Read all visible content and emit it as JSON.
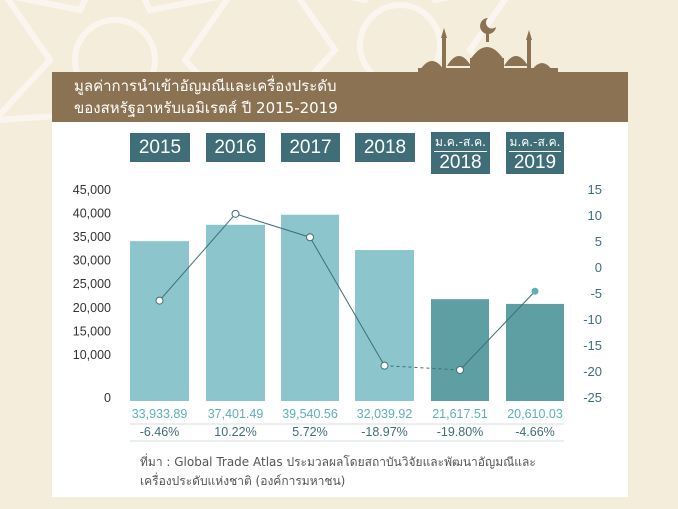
{
  "colors": {
    "background": "#f4eddc",
    "banner": "#8b7252",
    "year_box": "#3f6e78",
    "bar_light": "#8cc6cc",
    "bar_dark": "#5d9fa3",
    "line": "#3f6e78",
    "value_text": "#5db0b7",
    "axis_text": "#333333",
    "right_axis_text": "#3f6e78"
  },
  "banner": {
    "title_line1": "มูลค่าการนำเข้าอัญมณีและเครื่องประดับ",
    "title_line2": "ของสหรัฐอาหรับเอมิเรตส์ ปี 2015-2019"
  },
  "year_boxes": [
    {
      "year": "2015",
      "range": ""
    },
    {
      "year": "2016",
      "range": ""
    },
    {
      "year": "2017",
      "range": ""
    },
    {
      "year": "2018",
      "range": ""
    },
    {
      "year": "2018",
      "range": "ม.ค.-ส.ค."
    },
    {
      "year": "2019",
      "range": "ม.ค.-ส.ค."
    }
  ],
  "chart_data": {
    "type": "bar",
    "categories": [
      "2015",
      "2016",
      "2017",
      "2018",
      "ม.ค.-ส.ค. 2018",
      "ม.ค.-ส.ค. 2019"
    ],
    "series": [
      {
        "type": "bar",
        "axis": "left",
        "values": [
          33933.89,
          37401.49,
          39540.56,
          32039.92,
          21617.51,
          20610.03
        ],
        "value_labels": [
          "33,933.89",
          "37,401.49",
          "39,540.56",
          "32,039.92",
          "21,617.51",
          "20,610.03"
        ]
      },
      {
        "type": "line",
        "axis": "right",
        "values": [
          -6.46,
          10.22,
          5.72,
          -18.97,
          -19.8,
          -4.66
        ],
        "value_labels": [
          "-6.46%",
          "10.22%",
          "5.72%",
          "-18.97%",
          "-19.80%",
          "-4.66%"
        ]
      }
    ],
    "left_axis": {
      "ylim": [
        0,
        45000
      ],
      "ticks": [
        "0",
        "10,000",
        "15,000",
        "20,000",
        "25,000",
        "30,000",
        "35,000",
        "40,000",
        "45,000"
      ]
    },
    "right_axis": {
      "ylim": [
        -25,
        15
      ],
      "ticks": [
        "15",
        "10",
        "5",
        "0",
        "-5",
        "-10",
        "-15",
        "-20",
        "-25"
      ]
    },
    "grid": false,
    "legend": "none"
  },
  "source": {
    "line1": "ที่มา : Global Trade Atlas ประมวลผลโดยสถาบันวิจัยและพัฒนาอัญมณีและ",
    "line2": "เครื่องประดับแห่งชาติ (องค์การมหาชน)"
  }
}
